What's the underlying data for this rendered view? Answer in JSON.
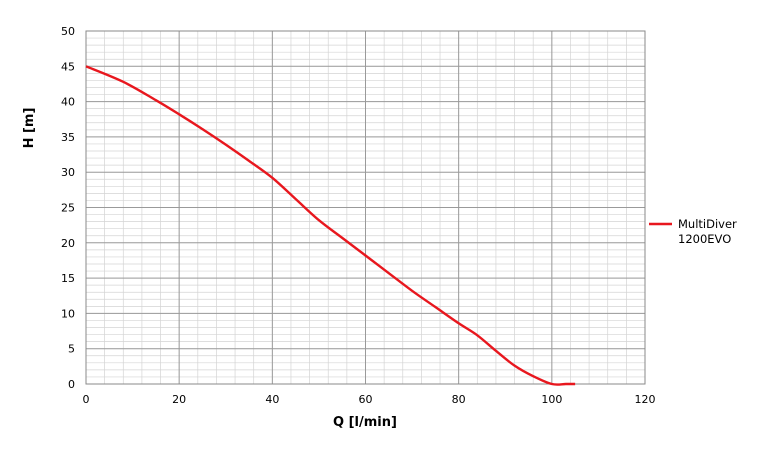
{
  "chart_data": {
    "type": "line",
    "xlabel": "Q [l/min]",
    "ylabel": "H [m]",
    "xlim": [
      0,
      120
    ],
    "ylim": [
      0,
      50
    ],
    "x_ticks": [
      "0",
      "20",
      "40",
      "60",
      "80",
      "100",
      "120"
    ],
    "y_ticks": [
      "0",
      "5",
      "10",
      "15",
      "20",
      "25",
      "30",
      "35",
      "40",
      "45",
      "50"
    ],
    "grid": true,
    "legend_position": "right",
    "series": [
      {
        "name": "MultiDiver 1200EVO",
        "legend_lines": [
          "MultiDiver",
          "1200EVO"
        ],
        "color": "#e8171e",
        "x": [
          0,
          8,
          15,
          20,
          25,
          30,
          35,
          40,
          45,
          50,
          55,
          60,
          65,
          70,
          75,
          80,
          84,
          88,
          92,
          96,
          100,
          103,
          105
        ],
        "y": [
          45,
          42.8,
          40.2,
          38.2,
          36.1,
          33.9,
          31.6,
          29.2,
          26.2,
          23.2,
          20.7,
          18.2,
          15.7,
          13.2,
          10.9,
          8.6,
          6.9,
          4.7,
          2.6,
          1.1,
          0.0,
          0.0,
          0.0
        ]
      }
    ]
  }
}
